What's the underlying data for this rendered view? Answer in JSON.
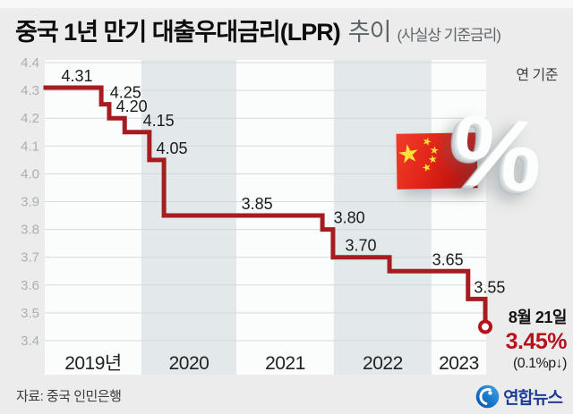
{
  "header": {
    "title_main": "중국 1년 만기 대출우대금리(LPR)",
    "title_trail": "추이",
    "title_paren": "(사실상 기준금리)",
    "basis_label": "연 기준"
  },
  "callout": {
    "date": "8월 21일",
    "value": "3.45%",
    "change": "(0.1%p↓)"
  },
  "footer": {
    "source": "자료: 중국 인민은행",
    "logo_text": "연합뉴스"
  },
  "decor": {
    "percent_glyph": "%",
    "flag": "china-flag",
    "star": "★"
  },
  "colors": {
    "page_bg": "#ececec",
    "band_white": "#fbfcfc",
    "band_gray": "#e3e8ea",
    "grid": "#d4d9db",
    "tick_text": "#a9afb5",
    "label_text": "#1b1b1b",
    "year_text": "#222222",
    "line_red": "#a51c21",
    "accent_red": "#b5121c",
    "marker_fill": "#ffffff",
    "flag_red": "#de2910",
    "flag_star": "#fde03a",
    "logo_blue": "#1c3d96"
  },
  "chart_data": {
    "type": "line",
    "subtype": "step-after",
    "title": "중국 1년 만기 대출우대금리(LPR) 추이",
    "unit": "%",
    "ylim": [
      3.4,
      4.4
    ],
    "ytick_step": 0.1,
    "yticks": [
      "4.4",
      "4.3",
      "4.2",
      "4.1",
      "4.0",
      "3.9",
      "3.8",
      "3.7",
      "3.6",
      "3.5",
      "3.4"
    ],
    "grid": true,
    "legend": "none",
    "year_bands": [
      {
        "label": "2019년",
        "from": 0.0,
        "to": 0.219,
        "shade": "white"
      },
      {
        "label": "2020",
        "from": 0.219,
        "to": 0.434,
        "shade": "gray"
      },
      {
        "label": "2021",
        "from": 0.434,
        "to": 0.655,
        "shade": "white"
      },
      {
        "label": "2022",
        "from": 0.655,
        "to": 0.876,
        "shade": "gray"
      },
      {
        "label": "2023",
        "from": 0.876,
        "to": 1.0,
        "shade": "white"
      }
    ],
    "steps": [
      {
        "value": 4.31,
        "from_x": 0.0,
        "label": "4.31",
        "label_x": 0.073
      },
      {
        "value": 4.25,
        "from_x": 0.128,
        "label": "4.25",
        "label_x": 0.183
      },
      {
        "value": 4.2,
        "from_x": 0.146,
        "label": "4.20",
        "label_x": 0.197
      },
      {
        "value": 4.15,
        "from_x": 0.181,
        "label": "4.15",
        "label_x": 0.258
      },
      {
        "value": 4.05,
        "from_x": 0.237,
        "label": "4.05",
        "label_x": 0.288
      },
      {
        "value": 3.85,
        "from_x": 0.27,
        "label": "3.85",
        "label_x": 0.481
      },
      {
        "value": 3.8,
        "from_x": 0.629,
        "label": "3.80",
        "label_x": 0.69
      },
      {
        "value": 3.7,
        "from_x": 0.653,
        "label": "3.70",
        "label_x": 0.716
      },
      {
        "value": 3.65,
        "from_x": 0.781,
        "label": "3.65",
        "label_x": 0.913
      },
      {
        "value": 3.55,
        "from_x": 0.959,
        "label": "3.55",
        "label_x": 1.008
      },
      {
        "value": 3.45,
        "from_x": 0.998,
        "marker": "open-circle"
      }
    ],
    "end_annotation": {
      "date": "8월 21일",
      "value_label": "3.45%",
      "change": "(0.1%p↓)"
    }
  }
}
